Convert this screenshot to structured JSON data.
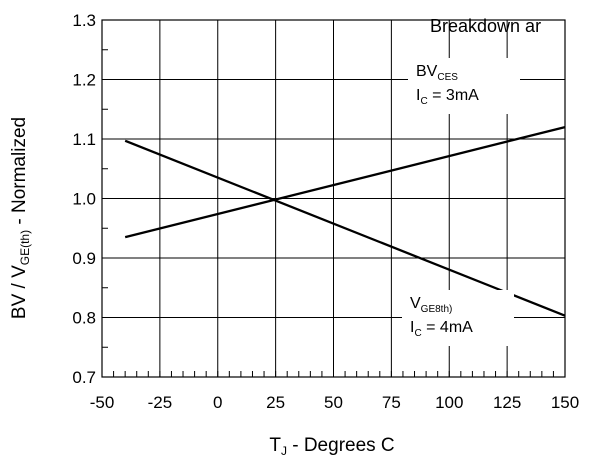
{
  "chart_data": {
    "type": "line",
    "title": "Breakdown ar",
    "xlabel": {
      "main": "T",
      "sub": "J",
      "rest": " - Degrees C"
    },
    "ylabel": {
      "pre": "BV / V",
      "sub": "GE(th)",
      "post": " - Normalized"
    },
    "xlim": [
      -50,
      150
    ],
    "ylim": [
      0.7,
      1.3
    ],
    "xticks": [
      -50,
      -25,
      0,
      25,
      50,
      75,
      100,
      125,
      150
    ],
    "xtick_labels": [
      "-50",
      "-25",
      "0",
      "25",
      "50",
      "75",
      "100",
      "125",
      "150"
    ],
    "yticks": [
      0.7,
      0.8,
      0.9,
      1.0,
      1.1,
      1.2,
      1.3
    ],
    "ytick_labels": [
      "0.7",
      "0.8",
      "0.9",
      "1.0",
      "1.1",
      "1.2",
      "1.3"
    ],
    "x_minor_step": 5,
    "y_minor_step": 0.05,
    "grid": true,
    "series": [
      {
        "x": [
          -40,
          150
        ],
        "y": [
          0.935,
          1.12
        ],
        "color": "#000000"
      },
      {
        "x": [
          -40,
          150
        ],
        "y": [
          1.097,
          0.803
        ],
        "color": "#000000"
      }
    ],
    "annotations": [
      {
        "series_index": 0,
        "lines": [
          {
            "main": "BV",
            "sub": "CES"
          },
          {
            "main": "I",
            "sub": "C",
            "rest": " = 3mA"
          }
        ]
      },
      {
        "series_index": 1,
        "lines": [
          {
            "main": "V",
            "sub": "GE8th)"
          },
          {
            "main": "I",
            "sub": "C",
            "rest": " = 4mA"
          }
        ]
      }
    ]
  }
}
